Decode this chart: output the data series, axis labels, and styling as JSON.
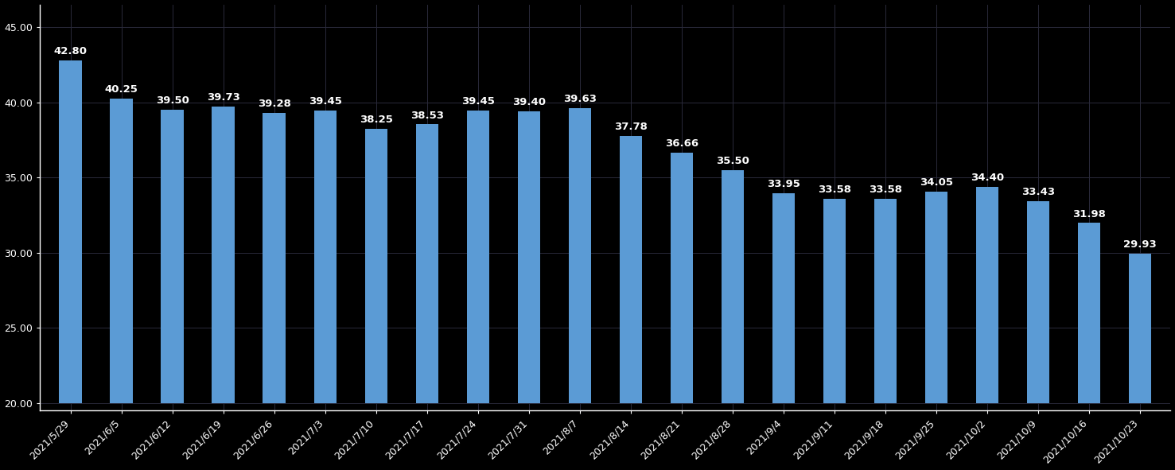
{
  "categories": [
    "2021/5/29",
    "2021/6/5",
    "2021/6/12",
    "2021/6/19",
    "2021/6/26",
    "2021/7/3",
    "2021/7/10",
    "2021/7/17",
    "2021/7/24",
    "2021/7/31",
    "2021/8/7",
    "2021/8/14",
    "2021/8/21",
    "2021/8/28",
    "2021/9/4",
    "2021/9/11",
    "2021/9/18",
    "2021/9/25",
    "2021/10/2",
    "2021/10/9",
    "2021/10/16",
    "2021/10/23"
  ],
  "values": [
    42.8,
    40.25,
    39.5,
    39.73,
    39.28,
    39.45,
    38.25,
    38.53,
    39.45,
    39.4,
    39.63,
    37.78,
    36.66,
    35.5,
    33.95,
    33.58,
    33.58,
    34.05,
    34.4,
    33.43,
    31.98,
    29.93
  ],
  "bar_bottom": 20.0,
  "bar_color": "#5b9bd5",
  "background_color": "#000000",
  "plot_bg_color": "#000000",
  "text_color": "#ffffff",
  "grid_color": "#2a2a3a",
  "yticks": [
    20.0,
    25.0,
    30.0,
    35.0,
    40.0,
    45.0
  ],
  "ylim": [
    19.5,
    46.5
  ],
  "bar_width": 0.45,
  "label_fontsize": 9.0,
  "tick_fontsize": 9.0,
  "value_fontsize": 9.5
}
